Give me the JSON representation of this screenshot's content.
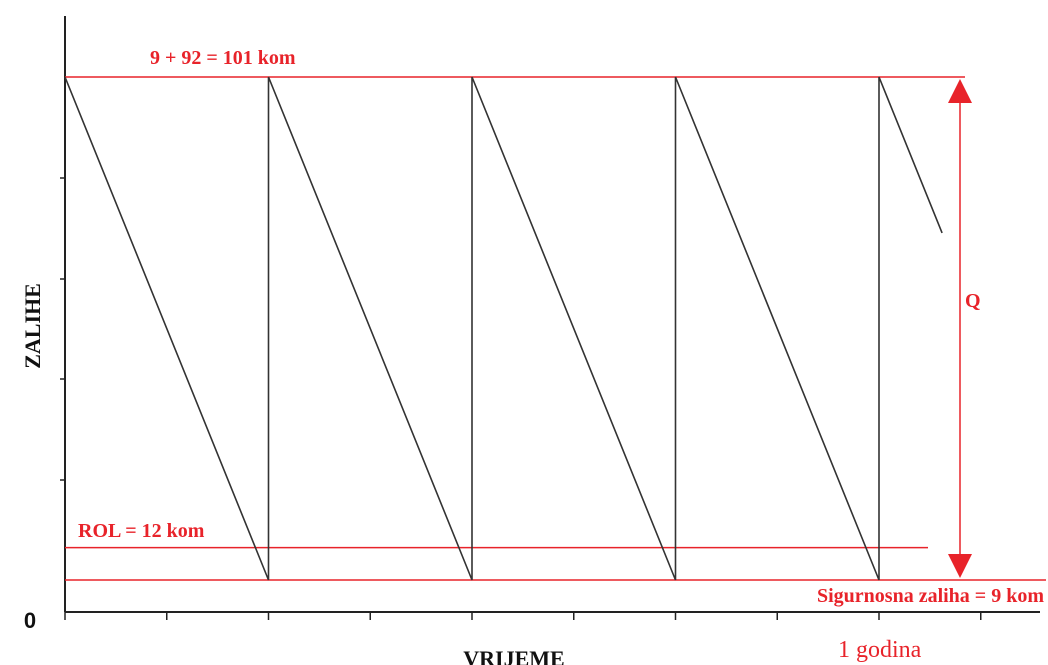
{
  "chart_data": {
    "type": "line",
    "title": "",
    "xlabel": "VRIJEME",
    "ylabel": "ZALIHE",
    "origin_label": "0",
    "cycle_count": 4.31,
    "max_level": 101,
    "safety_stock": 9,
    "reorder_level": 12,
    "annotations": {
      "max_label": "9 + 92 = 101 kom",
      "rol_label": "ROL = 12 kom",
      "safety_label": "Sigurnosna zaliha = 9 kom",
      "q_label": "Q",
      "year_label": "1 godina"
    },
    "colors": {
      "series": "#333333",
      "annotation": "#e8232a",
      "axis": "#222222"
    },
    "grid": false
  }
}
